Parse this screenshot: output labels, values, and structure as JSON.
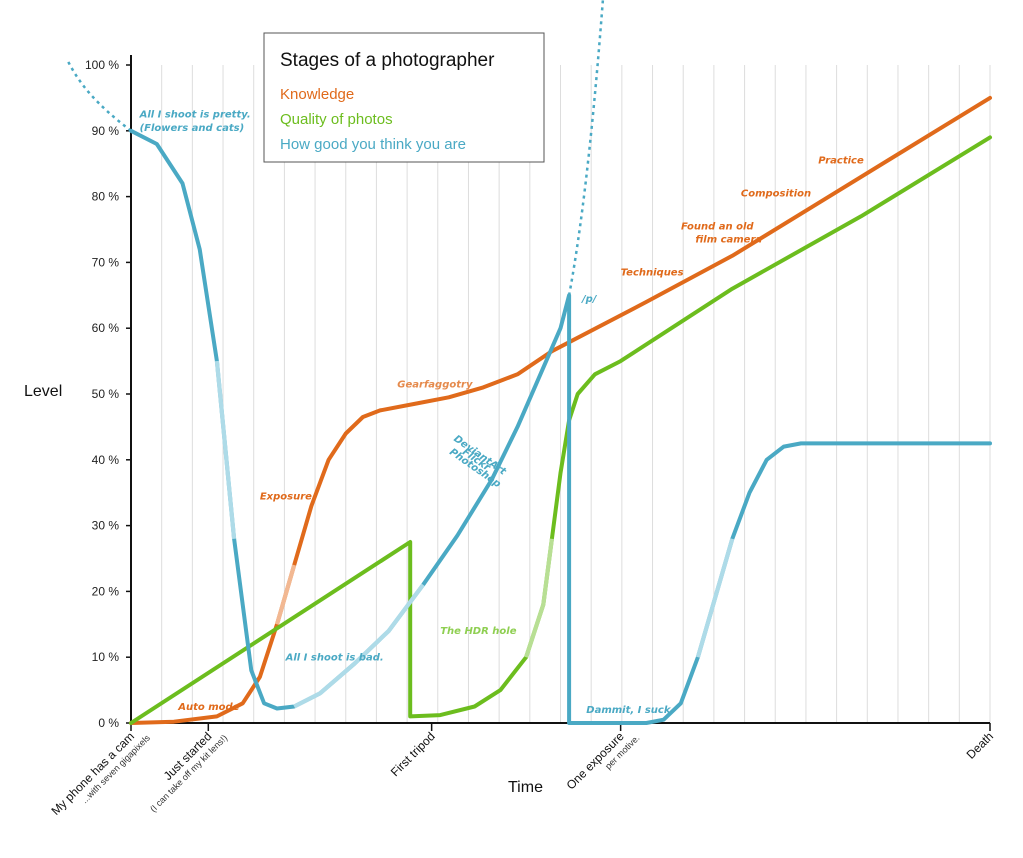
{
  "colors": {
    "knowledge": "#e06a1b",
    "quality": "#6cbd1e",
    "thinking": "#4aa9c4",
    "quality_faded": "#b8df94",
    "knowledge_faded": "#f2b892",
    "thinking_faded": "#aedbe8",
    "grid": "#dddddd",
    "axis": "#111111"
  },
  "chart_data": {
    "type": "line",
    "title": "Stages of a photographer",
    "xlabel": "Time",
    "ylabel": "Level",
    "ylim": [
      0,
      100
    ],
    "yticks": [
      "0 %",
      "10 %",
      "20 %",
      "30 %",
      "40 %",
      "50 %",
      "60 %",
      "70 %",
      "80 %",
      "90 %",
      "100 %"
    ],
    "ytick_values": [
      0,
      10,
      20,
      30,
      40,
      50,
      60,
      70,
      80,
      90,
      100
    ],
    "xlim": [
      0,
      100
    ],
    "grid": "vertical",
    "legend_position": "top-center",
    "x_milestones": [
      {
        "x": 0,
        "label": "My phone has a cam",
        "sub": "...with seven gigapixels"
      },
      {
        "x": 9,
        "label": "Just started",
        "sub": "(I can take off my kit lens!)"
      },
      {
        "x": 35,
        "label": "First tripod",
        "sub": ""
      },
      {
        "x": 57,
        "label": "One exposure",
        "sub": "per motive."
      },
      {
        "x": 100,
        "label": "Death",
        "sub": ""
      }
    ],
    "series": [
      {
        "name": "Knowledge",
        "values": [
          [
            0,
            0
          ],
          [
            5,
            0.2
          ],
          [
            10,
            1
          ],
          [
            13,
            3
          ],
          [
            15,
            7
          ],
          [
            17,
            15
          ],
          [
            19,
            24
          ],
          [
            21,
            33
          ],
          [
            23,
            40
          ],
          [
            25,
            44
          ],
          [
            27,
            46.5
          ],
          [
            29,
            47.5
          ],
          [
            33,
            48.5
          ],
          [
            37,
            49.5
          ],
          [
            41,
            51
          ],
          [
            45,
            53
          ],
          [
            49,
            56.5
          ],
          [
            60,
            64
          ],
          [
            70,
            71
          ],
          [
            80,
            79
          ],
          [
            90,
            87
          ],
          [
            100,
            95
          ]
        ]
      },
      {
        "name": "Quality of photos",
        "values": [
          [
            0,
            0
          ],
          [
            32.5,
            27.5
          ],
          [
            32.5,
            1
          ],
          [
            36,
            1.2
          ],
          [
            40,
            2.5
          ],
          [
            43,
            5
          ],
          [
            46,
            10
          ],
          [
            48,
            18
          ],
          [
            49,
            28
          ],
          [
            50,
            38
          ],
          [
            51,
            46
          ],
          [
            52,
            50
          ],
          [
            54,
            53
          ],
          [
            57,
            55
          ],
          [
            70,
            66
          ],
          [
            85,
            77
          ],
          [
            100,
            89
          ]
        ]
      },
      {
        "name": "How good you think you are",
        "values": [
          [
            0,
            90
          ],
          [
            3,
            88
          ],
          [
            6,
            82
          ],
          [
            8,
            72
          ],
          [
            10,
            55
          ],
          [
            12,
            28
          ],
          [
            14,
            8
          ],
          [
            15.5,
            3
          ],
          [
            17,
            2.2
          ],
          [
            19,
            2.5
          ],
          [
            22,
            4.5
          ],
          [
            26,
            9
          ],
          [
            30,
            14
          ],
          [
            34,
            21
          ],
          [
            38,
            28.5
          ],
          [
            42,
            37
          ],
          [
            45,
            45
          ],
          [
            48,
            54
          ],
          [
            50,
            60
          ],
          [
            51,
            65
          ],
          [
            51,
            0
          ],
          [
            60,
            0
          ],
          [
            62,
            0.5
          ],
          [
            64,
            3
          ],
          [
            66,
            10
          ],
          [
            68,
            19
          ],
          [
            70,
            28
          ],
          [
            72,
            35
          ],
          [
            74,
            40
          ],
          [
            76,
            42
          ],
          [
            78,
            42.5
          ],
          [
            100,
            42.5
          ]
        ]
      }
    ],
    "annotations": [
      {
        "text": "All I shoot is pretty.",
        "series": "How good you think you are",
        "x": 1,
        "y": 92
      },
      {
        "text": "(Flowers and cats)",
        "series": "How good you think you are",
        "x": 1,
        "y": 90
      },
      {
        "text": "Auto mode",
        "series": "Knowledge",
        "x": 5.5,
        "y": 2
      },
      {
        "text": "Exposure",
        "series": "Knowledge",
        "x": 15,
        "y": 34
      },
      {
        "text": "All I shoot is bad.",
        "series": "How good you think you are",
        "x": 18,
        "y": 9.5
      },
      {
        "text": "Gearfaggotry",
        "series": "Knowledge",
        "x": 31,
        "y": 51
      },
      {
        "text": "DeviantArt",
        "series": "How good you think you are",
        "x": 37.5,
        "y": 43
      },
      {
        "text": "Flickr",
        "series": "How good you think you are",
        "x": 38.5,
        "y": 41
      },
      {
        "text": "Photoshop",
        "series": "How good you think you are",
        "x": 37,
        "y": 41
      },
      {
        "text": "The HDR hole",
        "series": "Quality of photos",
        "x": 36,
        "y": 13.5
      },
      {
        "text": "/p/",
        "series": "How good you think you are",
        "x": 52.5,
        "y": 64
      },
      {
        "text": "Dammit, I suck",
        "series": "How good you think you are",
        "x": 53,
        "y": 1.5
      },
      {
        "text": "Techniques",
        "series": "Knowledge",
        "x": 57,
        "y": 68
      },
      {
        "text": "Found an old",
        "series": "Knowledge",
        "x": 62,
        "y": 75
      },
      {
        "text": "film camera",
        "series": "Knowledge",
        "x": 63,
        "y": 73
      },
      {
        "text": "Composition",
        "series": "Knowledge",
        "x": 71,
        "y": 80
      },
      {
        "text": "Practice",
        "series": "Knowledge",
        "x": 80,
        "y": 85
      }
    ]
  }
}
